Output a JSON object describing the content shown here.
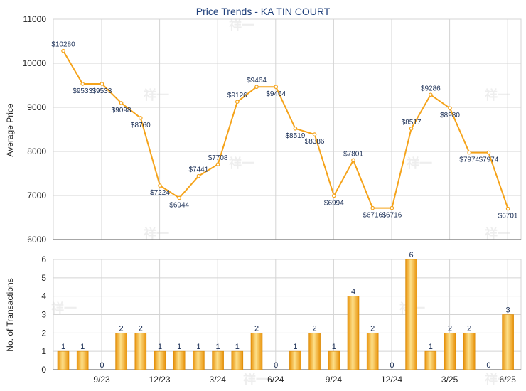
{
  "chart_data": [
    {
      "type": "line",
      "title": "Price Trends - KA TIN COURT",
      "ylabel": "Average Price",
      "ylim": [
        6000,
        11000
      ],
      "y_ticks": [
        "6000",
        "7000",
        "8000",
        "9000",
        "10000",
        "11000"
      ],
      "x_tick_labels": [
        "9/23",
        "12/23",
        "3/24",
        "6/24",
        "9/24",
        "12/24",
        "3/25",
        "6/25"
      ],
      "grid": true,
      "color": "#f5a31a",
      "values": [
        10280,
        9533,
        9533,
        9098,
        8760,
        7224,
        6944,
        7441,
        7708,
        9126,
        9464,
        9464,
        8519,
        8386,
        6994,
        7801,
        6716,
        6716,
        8517,
        9286,
        8980,
        7974,
        7974,
        6701
      ],
      "labels": [
        "$10280",
        "$9533",
        "$9533",
        "$9098",
        "$8760",
        "$7224",
        "$6944",
        "$7441",
        "$7708",
        "$9126",
        "$9464",
        "$9464",
        "$8519",
        "$8386",
        "$6994",
        "$7801",
        "$6716",
        "$6716",
        "$8517",
        "$9286",
        "$8980",
        "$7974",
        "$7974",
        "$6701"
      ]
    },
    {
      "type": "bar",
      "ylabel": "No. of Transactions",
      "ylim": [
        0,
        6
      ],
      "y_ticks": [
        "0",
        "1",
        "2",
        "3",
        "4",
        "5",
        "6"
      ],
      "x_tick_labels": [
        "9/23",
        "12/23",
        "3/24",
        "6/24",
        "9/24",
        "12/24",
        "3/25",
        "6/25"
      ],
      "grid": true,
      "color": "#f5a31a",
      "values": [
        1,
        1,
        0,
        2,
        2,
        1,
        1,
        1,
        1,
        1,
        2,
        0,
        1,
        2,
        1,
        4,
        2,
        0,
        6,
        1,
        2,
        2,
        0,
        3
      ],
      "labels": [
        "1",
        "1",
        "0",
        "2",
        "2",
        "1",
        "1",
        "1",
        "1",
        "1",
        "2",
        "0",
        "1",
        "2",
        "1",
        "4",
        "2",
        "0",
        "6",
        "1",
        "2",
        "2",
        "0",
        "3"
      ]
    }
  ]
}
